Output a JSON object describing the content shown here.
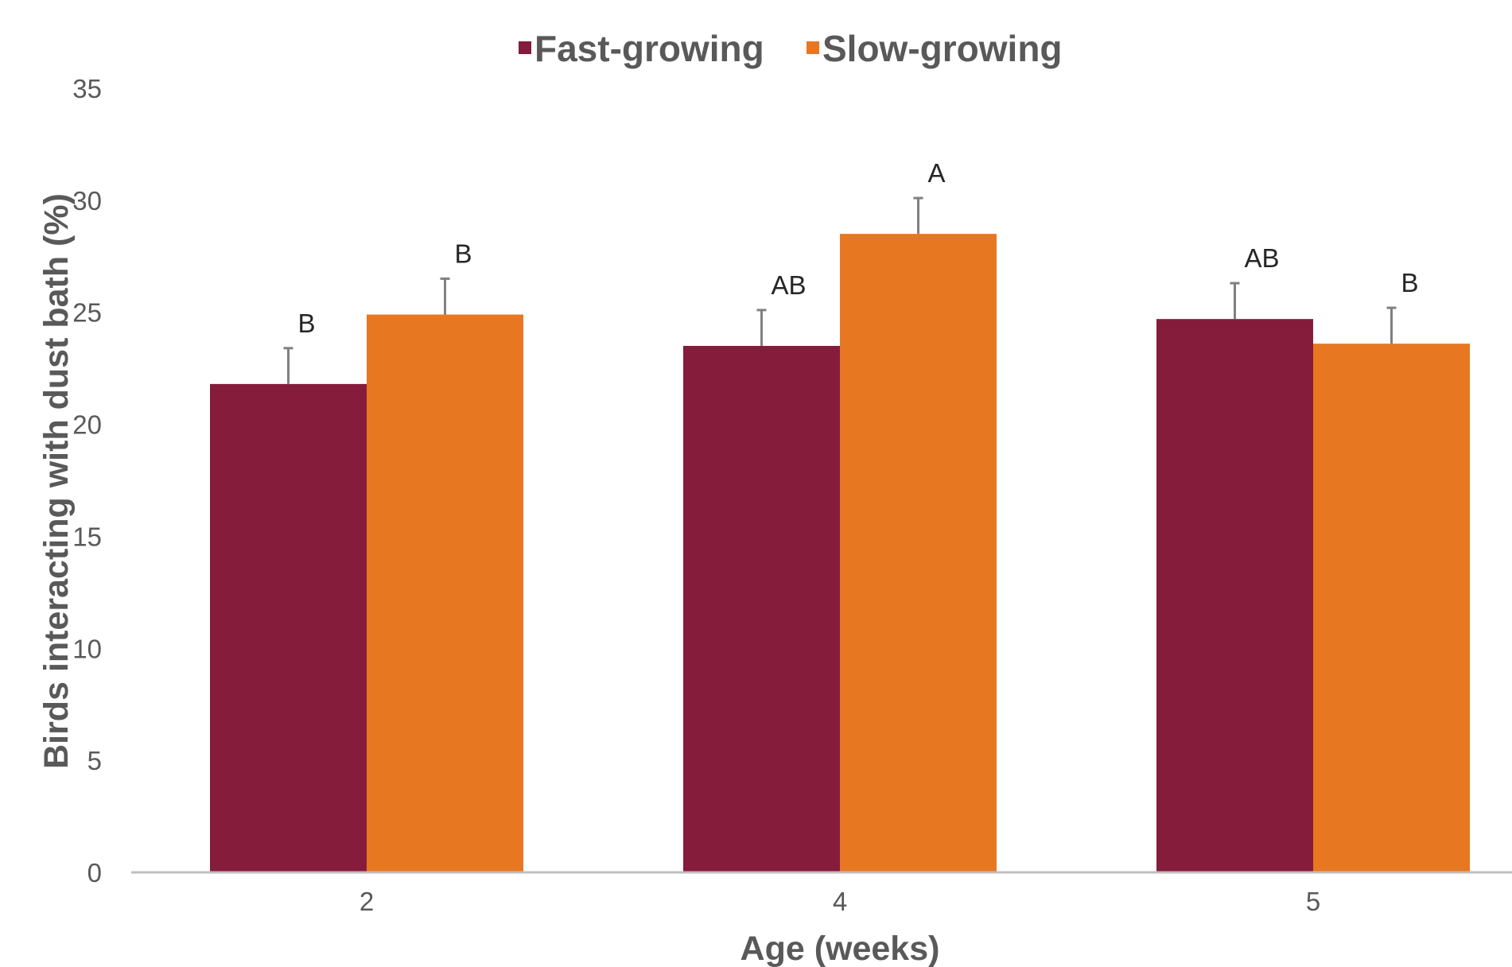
{
  "chart_data": {
    "type": "bar",
    "title": "",
    "xlabel": "Age (weeks)",
    "ylabel": "Birds interacting with dust bath (%)",
    "ylim": [
      0,
      35
    ],
    "yticks": [
      0,
      5,
      10,
      15,
      20,
      25,
      30,
      35
    ],
    "categories": [
      "2",
      "4",
      "5"
    ],
    "grid": false,
    "legend_position": "top-center",
    "series": [
      {
        "name": "Fast-growing",
        "color": "#851C3C",
        "values": [
          21.8,
          23.5,
          24.7
        ],
        "errors": [
          1.6,
          1.6,
          1.6
        ],
        "significance": [
          "B",
          "AB",
          "AB"
        ]
      },
      {
        "name": "Slow-growing",
        "color": "#E87722",
        "values": [
          24.9,
          28.5,
          23.6
        ],
        "errors": [
          1.6,
          1.6,
          1.6
        ],
        "significance": [
          "B",
          "A",
          "B"
        ]
      }
    ],
    "axis_color": "#BFBFBF",
    "errorbar_color": "#808080"
  }
}
